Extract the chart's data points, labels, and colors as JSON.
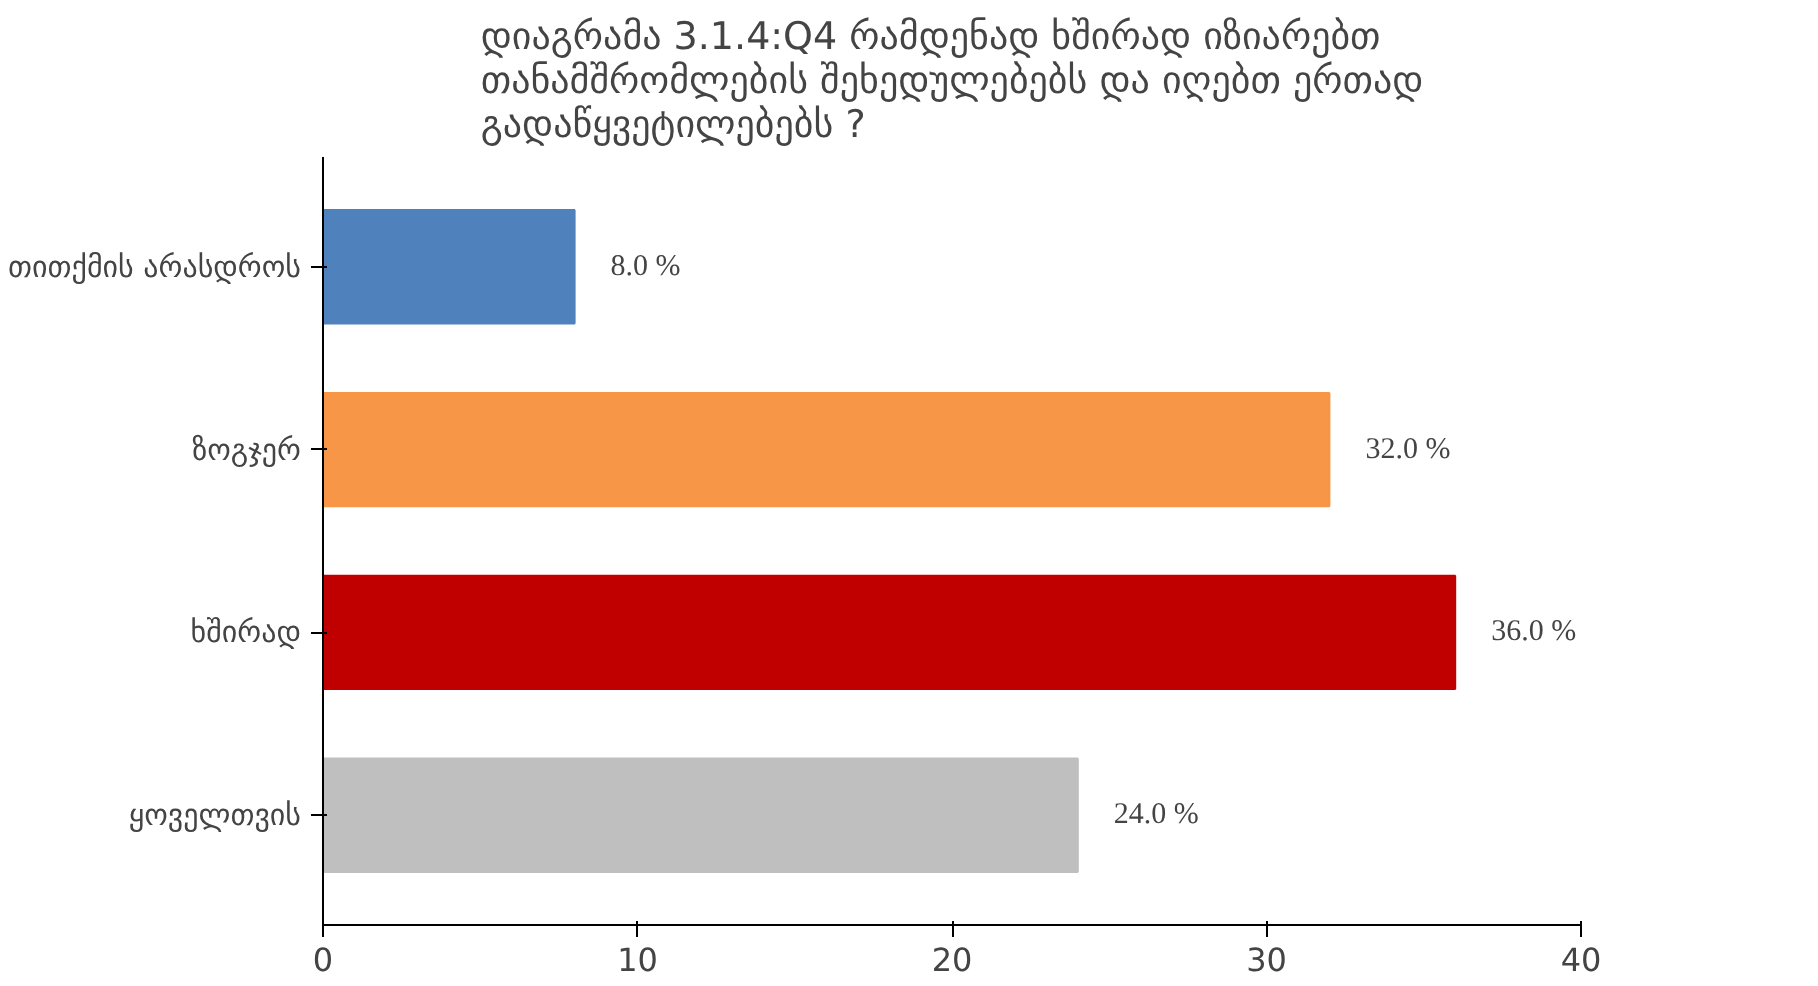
{
  "chart_data": {
    "type": "bar",
    "orientation": "horizontal",
    "title": "დიაგრამა 3.1.4:Q4  რამდენად ხშირად იზიარებთ თანამშრომლების შეხედულებებს და იღებთ ერთად გადაწყვეტილებებს ?",
    "categories": [
      "თითქმის არასდროს",
      "ზოგჯერ",
      "ხშირად",
      "ყოველთვის"
    ],
    "values": [
      8,
      32,
      36,
      24
    ],
    "colors": [
      "#4f81bd",
      "#f79646",
      "#c00000",
      "#bfbfbf"
    ],
    "value_labels": [
      "8.0 %",
      "32.0 %",
      "36.0 %",
      "24.0 %"
    ],
    "xlim": [
      0,
      40
    ],
    "xticks": [
      0,
      10,
      20,
      30,
      40
    ],
    "grid": false
  }
}
